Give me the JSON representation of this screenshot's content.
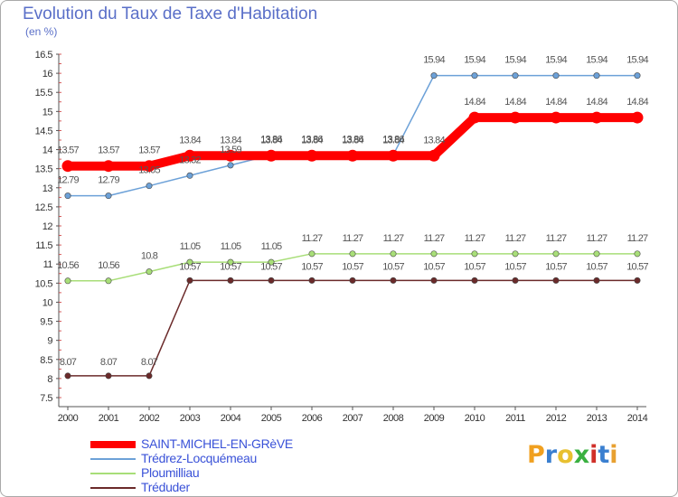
{
  "title": "Evolution du Taux de Taxe d'Habitation",
  "subtitle": "(en %)",
  "logo": "Proxiti",
  "chart_data": {
    "type": "line",
    "title": "Evolution du Taux de Taxe d'Habitation",
    "ylabel": "(en %)",
    "xlabel": "",
    "ylim": [
      7.5,
      16.5
    ],
    "yticks": [
      7.5,
      8,
      8.5,
      9,
      9.5,
      10,
      10.5,
      11,
      11.5,
      12,
      12.5,
      13,
      13.5,
      14,
      14.5,
      15,
      15.5,
      16,
      16.5
    ],
    "ytick_labels": [
      "7.5",
      "8",
      "8.5",
      "9",
      "9.5",
      "10",
      "10.5",
      "11",
      "11.5",
      "12",
      "12.5",
      "13",
      "13.5",
      "14",
      "14.5",
      "15",
      "15.5",
      "16",
      "16.5"
    ],
    "x": [
      "2000",
      "2001",
      "2002",
      "2003",
      "2004",
      "2005",
      "2006",
      "2007",
      "2008",
      "2009",
      "2010",
      "2011",
      "2012",
      "2013",
      "2014"
    ],
    "grid": false,
    "legend_position": "bottom-left",
    "series": [
      {
        "name": "SAINT-MICHEL-EN-GRèVE",
        "color": "#ff0000",
        "values": [
          13.57,
          13.57,
          13.57,
          13.84,
          13.84,
          13.84,
          13.84,
          13.84,
          13.84,
          13.84,
          14.84,
          14.84,
          14.84,
          14.84,
          14.84
        ],
        "labels": [
          "13.57",
          "13.57",
          "13.57",
          "13.84",
          "13.84",
          "13.84",
          "13.84",
          "13.84",
          "13.84",
          "13.84",
          "14.84",
          "14.84",
          "14.84",
          "14.84",
          "14.84"
        ]
      },
      {
        "name": "Trédrez-Locquémeau",
        "color": "#6ca1d8",
        "values": [
          12.79,
          12.79,
          13.05,
          13.32,
          13.59,
          13.86,
          13.86,
          13.86,
          13.86,
          15.94,
          15.94,
          15.94,
          15.94,
          15.94,
          15.94
        ],
        "labels": [
          "12.79",
          "12.79",
          "13.05",
          "13.32",
          "13.59",
          "13.86",
          "13.86",
          "13.86",
          "13.86",
          "15.94",
          "15.94",
          "15.94",
          "15.94",
          "15.94",
          "15.94"
        ]
      },
      {
        "name": "Ploumilliau",
        "color": "#a8de78",
        "values": [
          10.56,
          10.56,
          10.8,
          11.05,
          11.05,
          11.05,
          11.27,
          11.27,
          11.27,
          11.27,
          11.27,
          11.27,
          11.27,
          11.27,
          11.27
        ],
        "labels": [
          "10.56",
          "10.56",
          "10.8",
          "11.05",
          "11.05",
          "11.05",
          "11.27",
          "11.27",
          "11.27",
          "11.27",
          "11.27",
          "11.27",
          "11.27",
          "11.27",
          "11.27"
        ]
      },
      {
        "name": "Tréduder",
        "color": "#6b2a2a",
        "values": [
          8.07,
          8.07,
          8.07,
          10.57,
          10.57,
          10.57,
          10.57,
          10.57,
          10.57,
          10.57,
          10.57,
          10.57,
          10.57,
          10.57,
          10.57
        ],
        "labels": [
          "8.07",
          "8.07",
          "8.07",
          "10.57",
          "10.57",
          "10.57",
          "10.57",
          "10.57",
          "10.57",
          "10.57",
          "10.57",
          "10.57",
          "10.57",
          "10.57",
          "10.57"
        ]
      }
    ]
  },
  "logo_colors": [
    "#f0a020",
    "#3a7fd0",
    "#e8c030",
    "#3ab040",
    "#d0302a",
    "#3a7fd0",
    "#e8a030"
  ]
}
